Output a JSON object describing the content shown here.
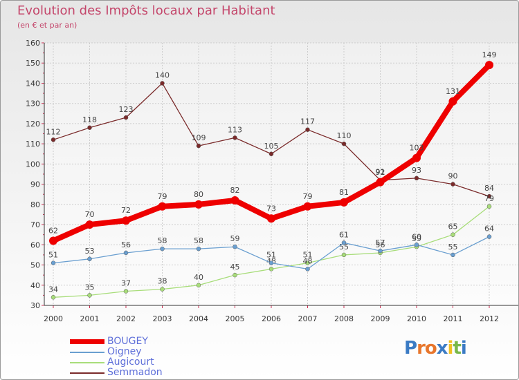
{
  "chart_data": {
    "type": "line",
    "title": "Evolution des Impôts locaux par Habitant",
    "subtitle": "(en € et par an)",
    "categories": [
      "2000",
      "2001",
      "2002",
      "2003",
      "2004",
      "2005",
      "2006",
      "2007",
      "2008",
      "2009",
      "2010",
      "2011",
      "2012"
    ],
    "ylim": [
      30,
      160
    ],
    "yticks": [
      30,
      40,
      50,
      60,
      70,
      80,
      90,
      100,
      110,
      120,
      130,
      140,
      150,
      160
    ],
    "series": [
      {
        "name": "Semmadon",
        "color": "#7a2a2a",
        "values": [
          112,
          118,
          123,
          140,
          109,
          113,
          105,
          117,
          110,
          92,
          93,
          90,
          84
        ]
      },
      {
        "name": "Augicourt",
        "color": "#a8dd7a",
        "values": [
          34,
          35,
          37,
          38,
          40,
          45,
          48,
          51,
          55,
          56,
          59,
          65,
          79
        ]
      },
      {
        "name": "Oigney",
        "color": "#6a9fd0",
        "values": [
          51,
          53,
          56,
          58,
          58,
          59,
          51,
          48,
          61,
          57,
          60,
          55,
          64
        ]
      },
      {
        "name": "BOUGEY",
        "color": "#ee0000",
        "values": [
          62,
          70,
          72,
          79,
          80,
          82,
          73,
          79,
          81,
          91,
          103,
          131,
          149
        ]
      }
    ]
  },
  "legend": [
    {
      "name": "BOUGEY",
      "color": "#ee0000"
    },
    {
      "name": "Oigney",
      "color": "#6a9fd0"
    },
    {
      "name": "Augicourt",
      "color": "#a8dd7a"
    },
    {
      "name": "Semmadon",
      "color": "#7a2a2a"
    }
  ],
  "logo": {
    "letters": [
      "P",
      "r",
      "o",
      "x",
      "i",
      "t",
      "i"
    ],
    "colors": [
      "#3b7bc4",
      "#e8762c",
      "#e8762c",
      "#3b7bc4",
      "#f0c020",
      "#79b84a",
      "#3b7bc4"
    ]
  }
}
